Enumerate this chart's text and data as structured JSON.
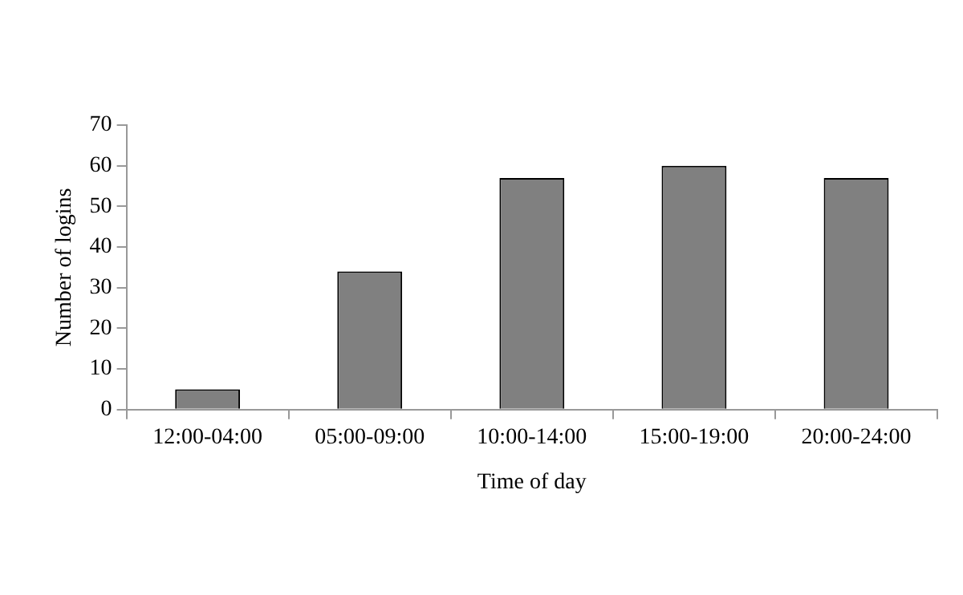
{
  "chart_data": {
    "type": "bar",
    "categories": [
      "12:00-04:00",
      "05:00-09:00",
      "10:00-14:00",
      "15:00-19:00",
      "20:00-24:00"
    ],
    "values": [
      5,
      34,
      57,
      60,
      57
    ],
    "color": "#808080",
    "xlabel": "Time of day",
    "ylabel": "Number of logins",
    "ylim": [
      0,
      70
    ],
    "yticks": [
      0,
      10,
      20,
      30,
      40,
      50,
      60,
      70
    ],
    "grid": false,
    "legend": false
  }
}
